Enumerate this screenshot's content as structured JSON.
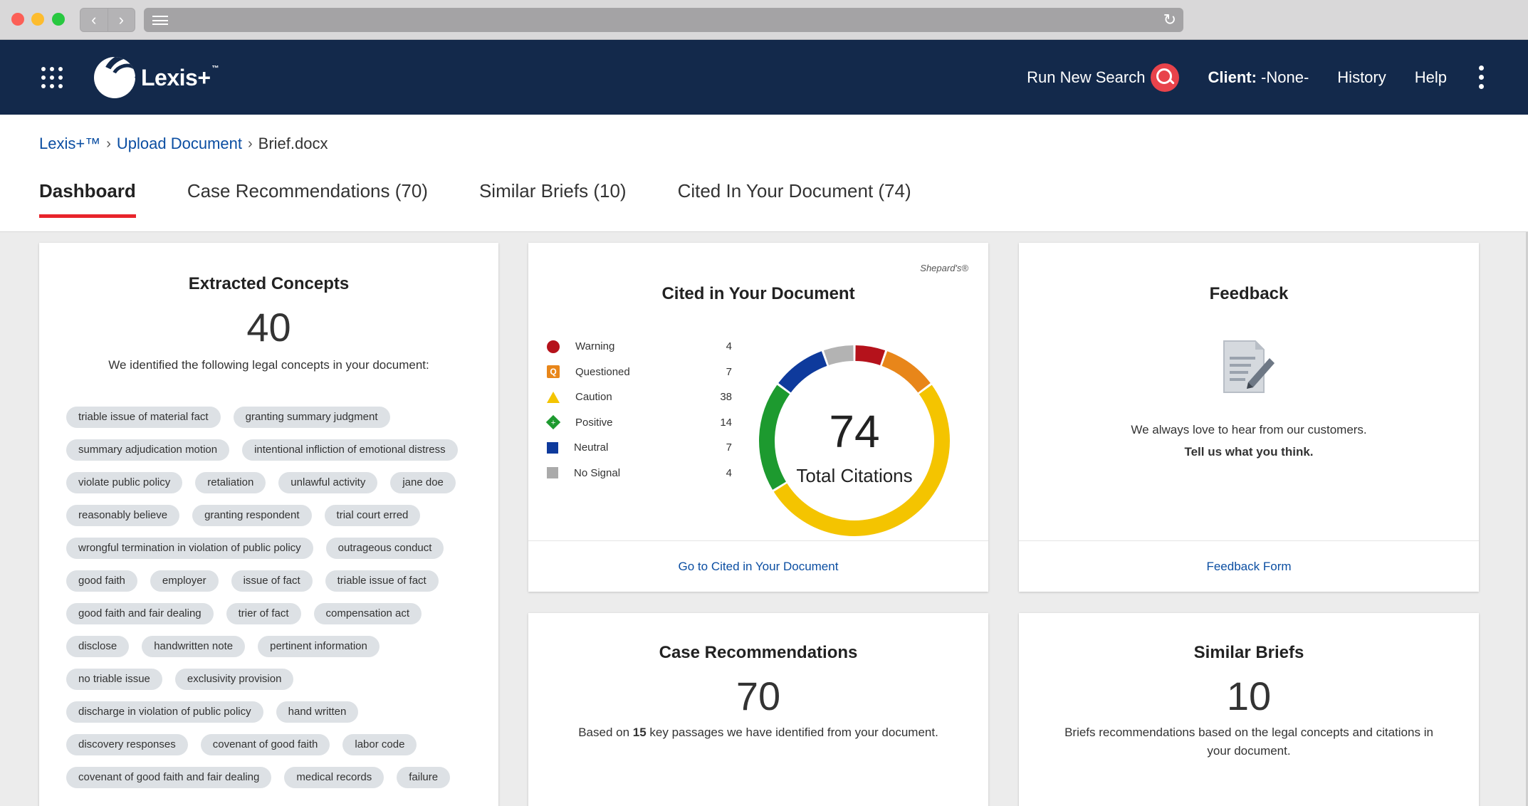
{
  "browser": {
    "back_glyph": "‹",
    "forward_glyph": "›",
    "reload_glyph": "↻"
  },
  "header": {
    "logo_text": "Lexis+",
    "logo_tm": "™",
    "run_new_search": "Run New Search",
    "client_label": "Client:",
    "client_value": "-None-",
    "history": "History",
    "help": "Help"
  },
  "breadcrumb": {
    "root": "Lexis+™",
    "middle": "Upload Document",
    "current": "Brief.docx",
    "sep": "›"
  },
  "tabs": [
    {
      "label": "Dashboard"
    },
    {
      "label": "Case Recommendations (70)"
    },
    {
      "label": "Similar Briefs (10)"
    },
    {
      "label": "Cited In Your Document (74)"
    }
  ],
  "concepts": {
    "title": "Extracted Concepts",
    "count": "40",
    "description": "We identified the following legal concepts in your document:",
    "chips": [
      "triable issue of material fact",
      "granting summary judgment",
      "summary adjudication motion",
      "intentional infliction of emotional distress",
      "violate public policy",
      "retaliation",
      "unlawful activity",
      "jane doe",
      "reasonably believe",
      "granting respondent",
      "trial court erred",
      "wrongful termination in violation of public policy",
      "outrageous conduct",
      "good faith",
      "employer",
      "issue of fact",
      "triable issue of fact",
      "good faith and fair dealing",
      "trier of fact",
      "compensation act",
      "disclose",
      "handwritten note",
      "pertinent information",
      "no triable issue",
      "exclusivity provision",
      "discharge in violation of public policy",
      "hand written",
      "discovery responses",
      "covenant of good faith",
      "labor code",
      "covenant of good faith and fair dealing",
      "medical records",
      "failure"
    ]
  },
  "cited": {
    "title": "Cited in Your Document",
    "brand": "Shepard's®",
    "total": "74",
    "total_label": "Total Citations",
    "footer_link": "Go to Cited in Your Document"
  },
  "chart_data": {
    "type": "pie",
    "categories": [
      "Warning",
      "Questioned",
      "Caution",
      "Positive",
      "Neutral",
      "No Signal"
    ],
    "values": [
      4,
      7,
      38,
      14,
      7,
      4
    ],
    "colors": [
      "#b5121b",
      "#e8861a",
      "#f4c400",
      "#1d9a2f",
      "#0e3a9c",
      "#b3b3b3"
    ],
    "title": "Cited in Your Document"
  },
  "feedback": {
    "title": "Feedback",
    "line1": "We always love to hear from our customers.",
    "line2": "Tell us what you think.",
    "footer_link": "Feedback Form"
  },
  "case_recommendations": {
    "title": "Case Recommendations",
    "count": "70",
    "desc_pre": "Based on ",
    "desc_num": "15",
    "desc_post": " key passages we have identified from your document."
  },
  "similar_briefs": {
    "title": "Similar Briefs",
    "count": "10",
    "description": "Briefs recommendations based on the legal concepts and citations in your document."
  }
}
